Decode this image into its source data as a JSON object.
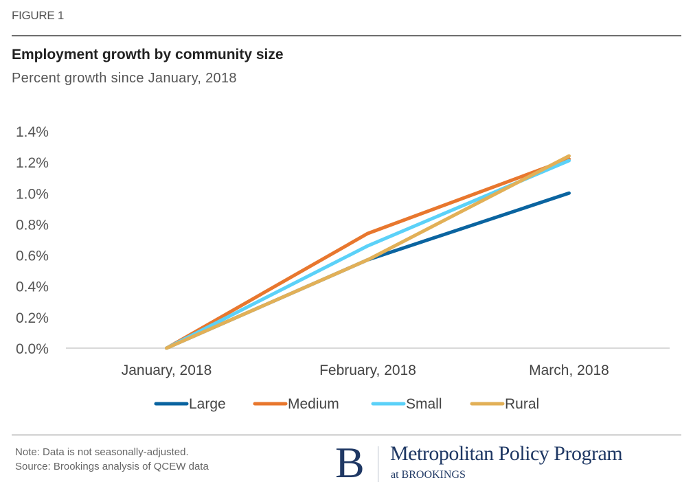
{
  "figure_label": "FIGURE 1",
  "footer": {
    "note": "Note: Data is not seasonally-adjusted.",
    "source": "Source: Brookings analysis of QCEW data"
  },
  "logo": {
    "mark": "B",
    "name": "Metropolitan Policy Program",
    "sub": "at BROOKINGS",
    "color": "#1f3864"
  },
  "chart_data": {
    "type": "line",
    "title": "Employment growth by community size",
    "subtitle": "Percent growth since January, 2018",
    "xlabel": "",
    "ylabel": "",
    "categories": [
      "January, 2018",
      "February, 2018",
      "March, 2018"
    ],
    "ylim": [
      0,
      1.4
    ],
    "yticks": [
      0.0,
      0.2,
      0.4,
      0.6,
      0.8,
      1.0,
      1.2,
      1.4
    ],
    "ytick_labels": [
      "0.0%",
      "0.2%",
      "0.4%",
      "0.6%",
      "0.8%",
      "1.0%",
      "1.2%",
      "1.4%"
    ],
    "grid": false,
    "legend_position": "bottom",
    "series": [
      {
        "name": "Large",
        "color": "#0a64a0",
        "values": [
          0.0,
          0.57,
          1.0
        ]
      },
      {
        "name": "Medium",
        "color": "#e8772e",
        "values": [
          0.0,
          0.74,
          1.22
        ]
      },
      {
        "name": "Small",
        "color": "#5bd1f8",
        "values": [
          0.0,
          0.66,
          1.21
        ]
      },
      {
        "name": "Rural",
        "color": "#e2b057",
        "values": [
          0.0,
          0.57,
          1.24
        ]
      }
    ]
  }
}
